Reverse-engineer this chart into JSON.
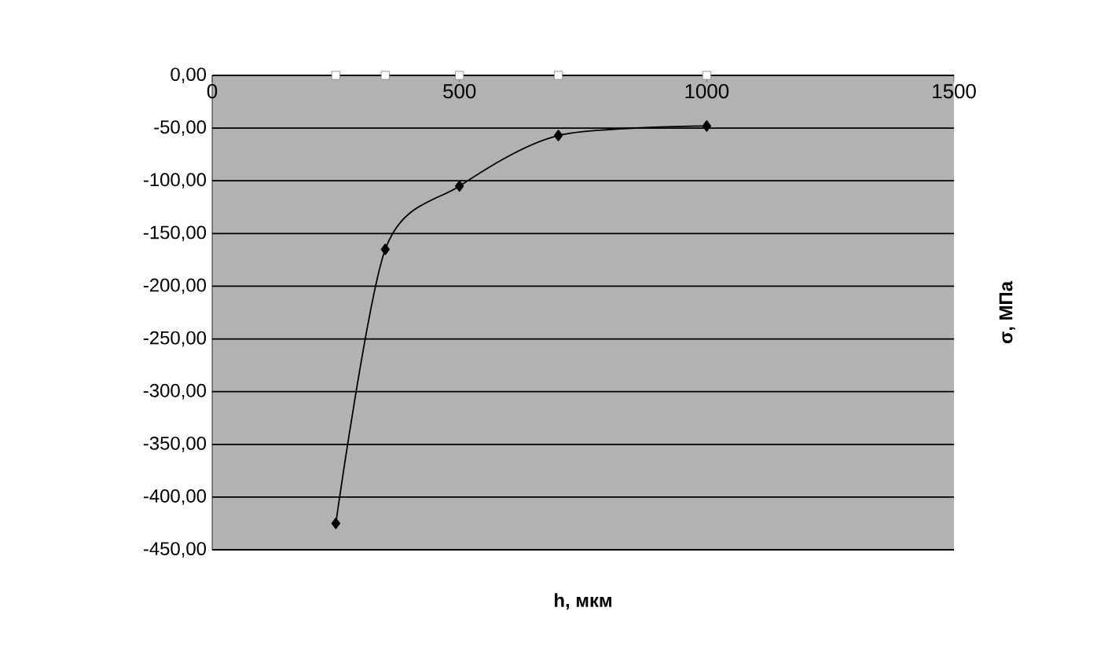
{
  "chart_data": {
    "type": "line",
    "xlabel": "h, мкм",
    "ylabel": "σ, МПа",
    "x": [
      250,
      350,
      500,
      700,
      1000
    ],
    "series": [
      {
        "color": "#000000",
        "marker": "diamond",
        "values": [
          -425,
          -165,
          -105,
          -57,
          -48
        ]
      },
      {
        "type": "scatter",
        "color": "#ffffff",
        "marker": "square",
        "values": [
          0,
          0,
          0,
          0,
          0
        ]
      }
    ],
    "xlim": [
      0,
      1500
    ],
    "xticks": [
      0,
      500,
      1000,
      1500
    ],
    "ylim": [
      -450,
      0
    ],
    "yticks": [
      {
        "value": 0,
        "label": "0,00"
      },
      {
        "value": -50,
        "label": "-50,00"
      },
      {
        "value": -100,
        "label": "-100,00"
      },
      {
        "value": -150,
        "label": "-150,00"
      },
      {
        "value": -200,
        "label": "-200,00"
      },
      {
        "value": -250,
        "label": "-250,00"
      },
      {
        "value": -300,
        "label": "-300,00"
      },
      {
        "value": -350,
        "label": "-350,00"
      },
      {
        "value": -400,
        "label": "-400,00"
      },
      {
        "value": -450,
        "label": "-450,00"
      }
    ],
    "grid": "y"
  }
}
